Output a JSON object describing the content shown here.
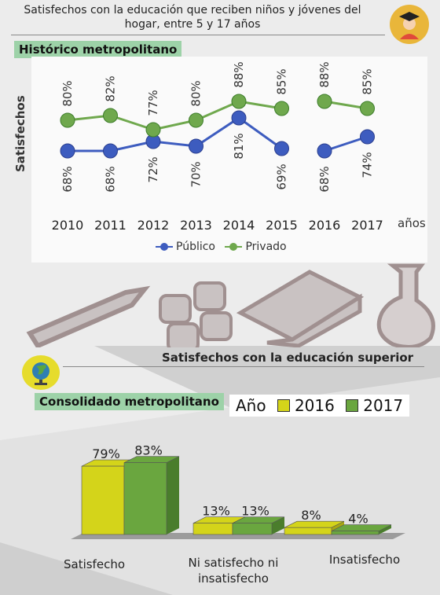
{
  "header": {
    "title_line1": "Satisfechos con la educación que reciben niños y jóvenes del",
    "title_line2": "hogar, entre 5 y 17 años"
  },
  "colors": {
    "publico": "#3d5cbf",
    "privado": "#6fa84d",
    "y2016": "#d4d41a",
    "y2017": "#6aa63f",
    "label_bg": "#9dd2a8",
    "accent_yellow": "#e9b63a"
  },
  "icons": [
    "graduate-icon",
    "pencil-icon",
    "calculator-icon",
    "book-icon",
    "flask-icon",
    "globe-icon"
  ],
  "section1": {
    "label": "Histórico metropolitano",
    "ylabel": "Satisfechos",
    "xlabel": "años",
    "legend": [
      "Público",
      "Privado"
    ]
  },
  "section2": {
    "title": "Satisfechos con la educación superior",
    "label": "Consolidado metropolitano",
    "legend_title": "Año",
    "legend": [
      "2016",
      "2017"
    ]
  },
  "chart_data": [
    {
      "type": "line",
      "x": [
        "2010",
        "2011",
        "2012",
        "2013",
        "2014",
        "2015",
        "2016",
        "2017"
      ],
      "ylabel": "Satisfechos",
      "xlabel": "años",
      "legend_placement": "bottom",
      "series": [
        {
          "name": "Público",
          "values": [
            68,
            68,
            72,
            70,
            81,
            69,
            68,
            74
          ],
          "labels": [
            "68%",
            "68%",
            "72%",
            "70%",
            "81%",
            "69%",
            "68%",
            "74%"
          ]
        },
        {
          "name": "Privado",
          "values": [
            80,
            82,
            77,
            80,
            88,
            85,
            88,
            85
          ],
          "labels": [
            "80%",
            "82%",
            "77%",
            "80%",
            "88%",
            "85%",
            "88%",
            "85%"
          ]
        }
      ],
      "segment_break_after_index": 5
    },
    {
      "type": "bar",
      "categories": [
        "Satisfecho",
        "Ni satisfecho ni insatisfecho",
        "Insatisfecho"
      ],
      "category_lines": [
        [
          "Satisfecho"
        ],
        [
          "Ni satisfecho ni",
          "insatisfecho"
        ],
        [
          "Insatisfecho"
        ]
      ],
      "series": [
        {
          "name": "2016",
          "values": [
            79,
            13,
            8
          ],
          "labels": [
            "79%",
            "13%",
            "8%"
          ]
        },
        {
          "name": "2017",
          "values": [
            83,
            13,
            4
          ],
          "labels": [
            "83%",
            "13%",
            "4%"
          ]
        }
      ],
      "legend_placement": "top-right"
    }
  ]
}
